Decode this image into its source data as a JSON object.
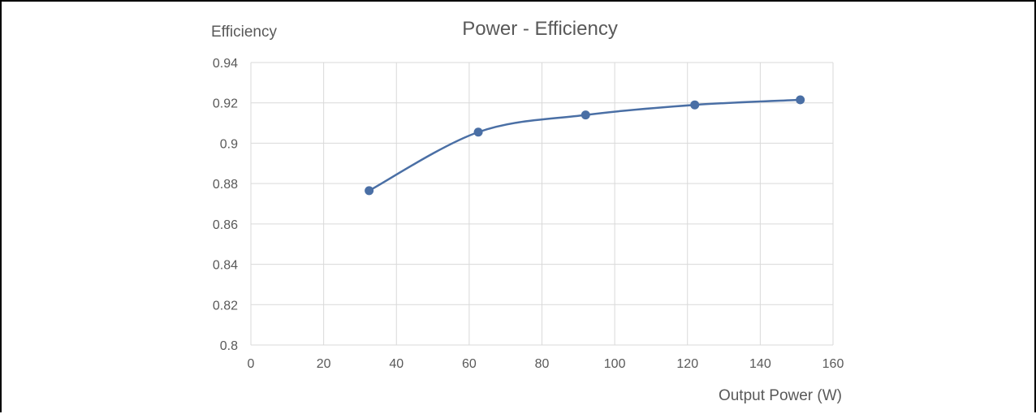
{
  "chart_data": {
    "type": "line",
    "title": "Power - Efficiency",
    "xlabel": "Output Power (W)",
    "ylabel": "Efficiency",
    "xlim": [
      0,
      160
    ],
    "ylim": [
      0.8,
      0.94
    ],
    "x_ticks": [
      "0",
      "20",
      "40",
      "60",
      "80",
      "100",
      "120",
      "140",
      "160"
    ],
    "y_ticks": [
      "0.8",
      "0.82",
      "0.84",
      "0.86",
      "0.88",
      "0.9",
      "0.92",
      "0.94"
    ],
    "grid": true,
    "smooth": true,
    "series": [
      {
        "color": "#4a6fa5",
        "x": [
          32.5,
          62.5,
          92,
          122,
          151
        ],
        "y": [
          0.8765,
          0.9055,
          0.914,
          0.919,
          0.9215
        ]
      }
    ]
  }
}
